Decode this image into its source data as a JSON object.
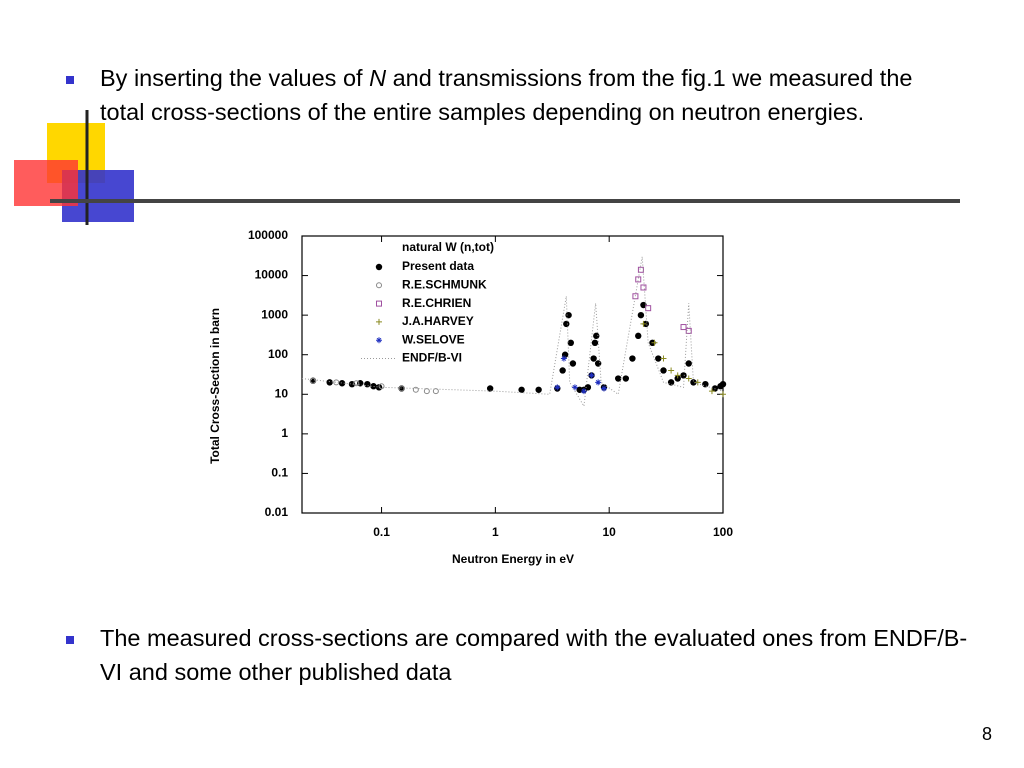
{
  "slide": {
    "bullet1": {
      "before": "By inserting the values of ",
      "italic": "N",
      "after": " and transmissions from the fig.1 we measured the total cross-sections of the entire samples depending on neutron energies."
    },
    "bullet2": "The measured cross-sections are compared with the evaluated ones from ENDF/B-VI and some other published data",
    "page_number": "8"
  },
  "chart_data": {
    "type": "scatter",
    "legend_title": "natural W (n,tot)",
    "x_label": "Neutron Energy in eV",
    "y_label": "Total Cross-Section in barn",
    "xlog": true,
    "ylog": true,
    "xlim": [
      0.02,
      100
    ],
    "xticks": [
      0.1,
      1,
      10,
      100
    ],
    "ylim": [
      0.01,
      100000
    ],
    "yticks": [
      0.01,
      0.1,
      1,
      10,
      100,
      1000,
      10000,
      100000
    ],
    "legend": "upper-left",
    "series": [
      {
        "name": "Present data",
        "color": "#000000",
        "marker": "filled-circle",
        "x": [
          0.025,
          0.035,
          0.045,
          0.055,
          0.065,
          0.075,
          0.085,
          0.095,
          0.15,
          0.9,
          1.7,
          2.4,
          3.5,
          3.9,
          4.1,
          4.2,
          4.4,
          4.6,
          4.8,
          5.5,
          6,
          6.5,
          7,
          7.3,
          7.5,
          7.7,
          8,
          9,
          12,
          14,
          16,
          18,
          19,
          20,
          21,
          24,
          27,
          30,
          35,
          40,
          45,
          50,
          55,
          70,
          85,
          95,
          100
        ],
        "values": [
          22,
          20,
          19,
          18,
          19,
          18,
          16,
          15,
          14,
          14,
          13,
          13,
          14,
          40,
          100,
          600,
          1000,
          200,
          60,
          13,
          13,
          15,
          30,
          80,
          200,
          300,
          60,
          15,
          25,
          25,
          80,
          300,
          1000,
          1800,
          600,
          200,
          80,
          40,
          20,
          25,
          30,
          60,
          20,
          18,
          14,
          16,
          18
        ]
      },
      {
        "name": "R.E.SCHMUNK",
        "color": "#888888",
        "marker": "open-circle",
        "x": [
          0.025,
          0.04,
          0.06,
          0.1,
          0.15,
          0.2,
          0.25,
          0.3
        ],
        "values": [
          22,
          20,
          19,
          16,
          14,
          13,
          12,
          12
        ]
      },
      {
        "name": "R.E.CHRIEN",
        "color": "#a050a0",
        "marker": "open-square",
        "x": [
          17,
          18,
          19,
          20,
          22,
          45,
          50
        ],
        "values": [
          3000,
          8000,
          14000,
          5000,
          1500,
          500,
          400
        ]
      },
      {
        "name": "J.A.HARVEY",
        "color": "#8a8a20",
        "marker": "plus",
        "x": [
          20,
          25,
          30,
          35,
          40,
          50,
          60,
          80,
          100
        ],
        "values": [
          600,
          200,
          80,
          40,
          30,
          25,
          20,
          12,
          10
        ]
      },
      {
        "name": "W.SELOVE",
        "color": "#2030c0",
        "marker": "star",
        "x": [
          3.5,
          4,
          5,
          6,
          7,
          8,
          9
        ],
        "values": [
          15,
          80,
          15,
          12,
          30,
          20,
          14
        ]
      },
      {
        "name": "ENDF/B-VI",
        "color": "#9a9a9a",
        "marker": "dotted-line",
        "x": [
          0.02,
          0.1,
          1,
          3,
          4.2,
          4.5,
          6,
          7.6,
          8.5,
          12,
          19.5,
          22,
          30,
          45,
          50,
          55,
          100
        ],
        "values": [
          25,
          15,
          12,
          10,
          3000,
          20,
          5,
          2000,
          20,
          10,
          30000,
          200,
          20,
          15,
          2000,
          20,
          12
        ]
      }
    ]
  }
}
